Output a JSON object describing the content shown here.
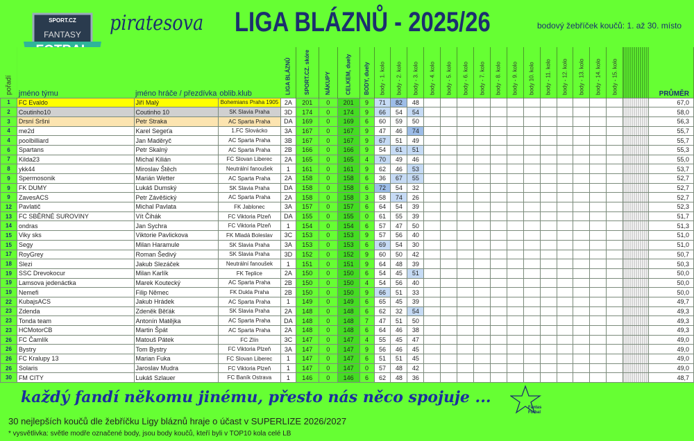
{
  "logo": {
    "brand": "SPORT.CZ",
    "line1": "FANTASY",
    "line2": "FOTBAL"
  },
  "header": {
    "title_script": "piratesova",
    "title_main": "LIGA BLÁZNŮ -  2025/26",
    "subtitle": "bodový žebříček koučů: 1. až 30. místo"
  },
  "columns": {
    "rank": "pořadí",
    "team": "jméno týmu",
    "player": "jméno hráče / přezdívka",
    "club": "oblib.klub",
    "liga": "LIGA BLÁZNŮ",
    "sport": "SPORT.CZ. skóre",
    "nakupy": "NÁKUPY",
    "celkem": "CELKEM, duely",
    "body_duely": "BODY, duely",
    "rounds": [
      "body - 1. kolo",
      "body - 2. kolo",
      "body - 3. kolo",
      "body - 4. kolo",
      "body - 5. kolo",
      "body - 6. kolo",
      "body - 7. kolo",
      "body - 8. kolo",
      "body - 9. kolo",
      "body 10. kolo",
      "body - 11. kolo",
      "body - 12. kolo",
      "body - 13. kolo",
      "body - 14. kolo",
      "body - 15. kolo"
    ],
    "avg": "PRŮMĚR"
  },
  "colors": {
    "background": "#66ff33",
    "title": "#1b2f6e",
    "top10_highlight": "#c6dbf5",
    "top1_highlight": "#9dbde8",
    "first": "#ffff00",
    "second": "#d0d0d0",
    "third": "#fce4b0"
  },
  "rows": [
    {
      "rank": "1",
      "team": "FC Evaldo",
      "player": "Jiří Malý",
      "club": "Bohemians Praha 1905",
      "liga": "2A",
      "sport": "201",
      "nakupy": "0",
      "celkem": "201",
      "body": "9",
      "rounds": [
        "71",
        "82",
        "48"
      ],
      "hl": [
        "l",
        "d",
        ""
      ],
      "avg": "67,0"
    },
    {
      "rank": "2",
      "team": "Coutinho10",
      "player": "Coutinho 10",
      "club": "SK Slavia Praha",
      "liga": "3D",
      "sport": "174",
      "nakupy": "0",
      "celkem": "174",
      "body": "9",
      "rounds": [
        "66",
        "54",
        "54"
      ],
      "hl": [
        "l",
        "",
        "l"
      ],
      "avg": "58,0"
    },
    {
      "rank": "3",
      "team": "Drsní Sršni",
      "player": "Petr Straka",
      "club": "AC Sparta Praha",
      "liga": "DA",
      "sport": "169",
      "nakupy": "0",
      "celkem": "169",
      "body": "6",
      "rounds": [
        "60",
        "59",
        "50"
      ],
      "hl": [
        "",
        "",
        ""
      ],
      "avg": "56,3"
    },
    {
      "rank": "4",
      "team": "me2d",
      "player": "Karel Segeťa",
      "club": "1.FC Slovácko",
      "liga": "3A",
      "sport": "167",
      "nakupy": "0",
      "celkem": "167",
      "body": "9",
      "rounds": [
        "47",
        "46",
        "74"
      ],
      "hl": [
        "",
        "",
        "d"
      ],
      "avg": "55,7"
    },
    {
      "rank": "4",
      "team": "poolbilliard",
      "player": "Jan Maděryč",
      "club": "AC Sparta Praha",
      "liga": "3B",
      "sport": "167",
      "nakupy": "0",
      "celkem": "167",
      "body": "9",
      "rounds": [
        "67",
        "51",
        "49"
      ],
      "hl": [
        "l",
        "",
        ""
      ],
      "avg": "55,7"
    },
    {
      "rank": "6",
      "team": "Spartans",
      "player": "Petr Skalný",
      "club": "AC Sparta Praha",
      "liga": "2B",
      "sport": "166",
      "nakupy": "0",
      "celkem": "166",
      "body": "9",
      "rounds": [
        "54",
        "61",
        "51"
      ],
      "hl": [
        "",
        "l",
        "l"
      ],
      "avg": "55,3"
    },
    {
      "rank": "7",
      "team": "Kilda23",
      "player": "Michal Kilián",
      "club": "FC Slovan Liberec",
      "liga": "2A",
      "sport": "165",
      "nakupy": "0",
      "celkem": "165",
      "body": "4",
      "rounds": [
        "70",
        "49",
        "46"
      ],
      "hl": [
        "l",
        "",
        ""
      ],
      "avg": "55,0"
    },
    {
      "rank": "8",
      "team": "ykk44",
      "player": "Miroslav Štěch",
      "club": "Neutrální fanoušek",
      "liga": "1",
      "sport": "161",
      "nakupy": "0",
      "celkem": "161",
      "body": "9",
      "rounds": [
        "62",
        "46",
        "53"
      ],
      "hl": [
        "",
        "",
        "l"
      ],
      "avg": "53,7"
    },
    {
      "rank": "9",
      "team": "Spermosonik",
      "player": "Marián Wetter",
      "club": "AC Sparta Praha",
      "liga": "2A",
      "sport": "158",
      "nakupy": "0",
      "celkem": "158",
      "body": "6",
      "rounds": [
        "36",
        "67",
        "55"
      ],
      "hl": [
        "",
        "l",
        "l"
      ],
      "avg": "52,7"
    },
    {
      "rank": "9",
      "team": "FK DUMY",
      "player": "Lukáš Dumský",
      "club": "SK Slavia Praha",
      "liga": "DA",
      "sport": "158",
      "nakupy": "0",
      "celkem": "158",
      "body": "6",
      "rounds": [
        "72",
        "54",
        "32"
      ],
      "hl": [
        "d",
        "",
        ""
      ],
      "avg": "52,7"
    },
    {
      "rank": "9",
      "team": "ZavesACS",
      "player": "Petr Závěšický",
      "club": "AC Sparta Praha",
      "liga": "2A",
      "sport": "158",
      "nakupy": "0",
      "celkem": "158",
      "body": "3",
      "rounds": [
        "58",
        "74",
        "26"
      ],
      "hl": [
        "",
        "l",
        ""
      ],
      "avg": "52,7"
    },
    {
      "rank": "12",
      "team": "Pavlatič",
      "player": "Michal Pavlata",
      "club": "FK Jablonec",
      "liga": "3A",
      "sport": "157",
      "nakupy": "0",
      "celkem": "157",
      "body": "6",
      "rounds": [
        "64",
        "54",
        "39"
      ],
      "hl": [
        "",
        "",
        ""
      ],
      "avg": "52,3"
    },
    {
      "rank": "13",
      "team": "FC SBĚRNÉ SUROVINY",
      "player": "Vít Čihák",
      "club": "FC Viktoria Plzeň",
      "liga": "DA",
      "sport": "155",
      "nakupy": "0",
      "celkem": "155",
      "body": "0",
      "rounds": [
        "61",
        "55",
        "39"
      ],
      "hl": [
        "",
        "",
        ""
      ],
      "avg": "51,7"
    },
    {
      "rank": "14",
      "team": "ondras",
      "player": "Jan Sychra",
      "club": "FC Viktoria Plzeň",
      "liga": "1",
      "sport": "154",
      "nakupy": "0",
      "celkem": "154",
      "body": "6",
      "rounds": [
        "57",
        "47",
        "50"
      ],
      "hl": [
        "",
        "",
        ""
      ],
      "avg": "51,3"
    },
    {
      "rank": "15",
      "team": "Viky sks",
      "player": "Viktorie Pavlickova",
      "club": "FK Mladá Boleslav",
      "liga": "3C",
      "sport": "153",
      "nakupy": "0",
      "celkem": "153",
      "body": "9",
      "rounds": [
        "57",
        "56",
        "40"
      ],
      "hl": [
        "",
        "",
        ""
      ],
      "avg": "51,0"
    },
    {
      "rank": "15",
      "team": "Segy",
      "player": "Milan Haramule",
      "club": "SK Slavia Praha",
      "liga": "3A",
      "sport": "153",
      "nakupy": "0",
      "celkem": "153",
      "body": "6",
      "rounds": [
        "69",
        "54",
        "30"
      ],
      "hl": [
        "l",
        "",
        ""
      ],
      "avg": "51,0"
    },
    {
      "rank": "17",
      "team": "RoyGrey",
      "player": "Roman Šedivý",
      "club": "SK Slavia Praha",
      "liga": "3D",
      "sport": "152",
      "nakupy": "0",
      "celkem": "152",
      "body": "9",
      "rounds": [
        "60",
        "50",
        "42"
      ],
      "hl": [
        "",
        "",
        ""
      ],
      "avg": "50,7"
    },
    {
      "rank": "18",
      "team": "Slezi",
      "player": "Jakub Slezáček",
      "club": "Neutrální fanoušek",
      "liga": "1",
      "sport": "151",
      "nakupy": "0",
      "celkem": "151",
      "body": "9",
      "rounds": [
        "64",
        "48",
        "39"
      ],
      "hl": [
        "",
        "",
        ""
      ],
      "avg": "50,3"
    },
    {
      "rank": "19",
      "team": "SSC Drevokocur",
      "player": "Milan Karlík",
      "club": "FK Teplice",
      "liga": "2A",
      "sport": "150",
      "nakupy": "0",
      "celkem": "150",
      "body": "6",
      "rounds": [
        "54",
        "45",
        "51"
      ],
      "hl": [
        "",
        "",
        "l"
      ],
      "avg": "50,0"
    },
    {
      "rank": "19",
      "team": "Lamsova jedenáctka",
      "player": "Marek Koutecký",
      "club": "AC Sparta Praha",
      "liga": "2B",
      "sport": "150",
      "nakupy": "0",
      "celkem": "150",
      "body": "4",
      "rounds": [
        "54",
        "56",
        "40"
      ],
      "hl": [
        "",
        "",
        ""
      ],
      "avg": "50,0"
    },
    {
      "rank": "19",
      "team": "Nemefi",
      "player": "Filip Němec",
      "club": "FK Dukla Praha",
      "liga": "2B",
      "sport": "150",
      "nakupy": "0",
      "celkem": "150",
      "body": "9",
      "rounds": [
        "66",
        "51",
        "33"
      ],
      "hl": [
        "l",
        "",
        ""
      ],
      "avg": "50,0"
    },
    {
      "rank": "22",
      "team": "KubajsACS",
      "player": "Jakub Hrádek",
      "club": "AC Sparta Praha",
      "liga": "1",
      "sport": "149",
      "nakupy": "0",
      "celkem": "149",
      "body": "6",
      "rounds": [
        "65",
        "45",
        "39"
      ],
      "hl": [
        "",
        "",
        ""
      ],
      "avg": "49,7"
    },
    {
      "rank": "23",
      "team": "Zdenda",
      "player": "Zdeněk Běťák",
      "club": "SK Slavia Praha",
      "liga": "2A",
      "sport": "148",
      "nakupy": "0",
      "celkem": "148",
      "body": "6",
      "rounds": [
        "62",
        "32",
        "54"
      ],
      "hl": [
        "",
        "",
        "l"
      ],
      "avg": "49,3"
    },
    {
      "rank": "23",
      "team": "Tonda team",
      "player": "Antonín Matějka",
      "club": "AC Sparta Praha",
      "liga": "DA",
      "sport": "148",
      "nakupy": "0",
      "celkem": "148",
      "body": "7",
      "rounds": [
        "47",
        "51",
        "50"
      ],
      "hl": [
        "",
        "",
        ""
      ],
      "avg": "49,3"
    },
    {
      "rank": "23",
      "team": "HCMotorCB",
      "player": "Martin Špát",
      "club": "AC Sparta Praha",
      "liga": "2A",
      "sport": "148",
      "nakupy": "0",
      "celkem": "148",
      "body": "6",
      "rounds": [
        "64",
        "46",
        "38"
      ],
      "hl": [
        "",
        "",
        ""
      ],
      "avg": "49,3"
    },
    {
      "rank": "26",
      "team": "FC Čamlík",
      "player": "Matouš Pátek",
      "club": "FC Zlín",
      "liga": "3C",
      "sport": "147",
      "nakupy": "0",
      "celkem": "147",
      "body": "4",
      "rounds": [
        "55",
        "45",
        "47"
      ],
      "hl": [
        "",
        "",
        ""
      ],
      "avg": "49,0"
    },
    {
      "rank": "26",
      "team": "Bystry",
      "player": "Tom Bystry",
      "club": "FC Viktoria Plzeň",
      "liga": "3A",
      "sport": "147",
      "nakupy": "0",
      "celkem": "147",
      "body": "9",
      "rounds": [
        "56",
        "46",
        "45"
      ],
      "hl": [
        "",
        "",
        ""
      ],
      "avg": "49,0"
    },
    {
      "rank": "26",
      "team": "FC Kralupy 13",
      "player": "Marian Fuka",
      "club": "FC Slovan Liberec",
      "liga": "1",
      "sport": "147",
      "nakupy": "0",
      "celkem": "147",
      "body": "6",
      "rounds": [
        "51",
        "51",
        "45"
      ],
      "hl": [
        "",
        "",
        ""
      ],
      "avg": "49,0"
    },
    {
      "rank": "26",
      "team": "Solaris",
      "player": "Jaroslav Mudra",
      "club": "FC Viktoria Plzeň",
      "liga": "1",
      "sport": "147",
      "nakupy": "0",
      "celkem": "147",
      "body": "0",
      "rounds": [
        "57",
        "48",
        "42"
      ],
      "hl": [
        "",
        "",
        ""
      ],
      "avg": "49,0"
    },
    {
      "rank": "30",
      "team": "FM CITY",
      "player": "Lukáš Szlauer",
      "club": "FC Baník Ostrava",
      "liga": "1",
      "sport": "146",
      "nakupy": "0",
      "celkem": "146",
      "body": "6",
      "rounds": [
        "62",
        "48",
        "36"
      ],
      "hl": [
        "",
        "",
        ""
      ],
      "avg": "48,7"
    }
  ],
  "footer": {
    "motto": "každý fandí někomu jinému, přesto nás něco spojuje ...",
    "star_logo": "Fantasy Fotbal",
    "note1": "30 nejlepších koučů dle žebříčku Ligy bláznů hraje o účast v SUPERLIZE 2026/2027",
    "note2": "* vysvětlivka: světle modře označené body, jsou body koučů, kteří byli v TOP10 kola celé LB"
  }
}
